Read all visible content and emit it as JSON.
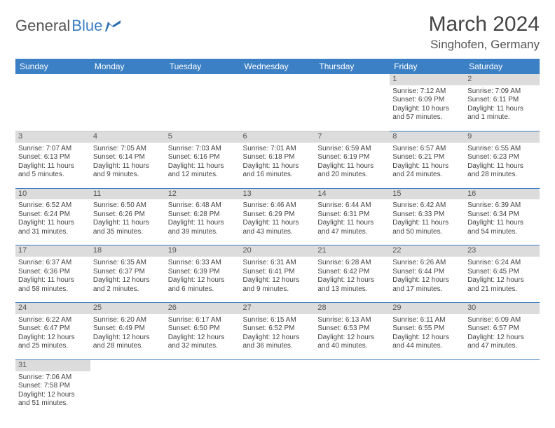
{
  "brand": {
    "part1": "General",
    "part2": "Blue"
  },
  "title": "March 2024",
  "subtitle": "Singhofen, Germany",
  "colors": {
    "header_bg": "#3b7fc4",
    "header_text": "#ffffff",
    "daynum_bg": "#dcdcdc",
    "row_border": "#3b7fc4",
    "body_text": "#444444",
    "page_bg": "#ffffff"
  },
  "fonts": {
    "title_size": 30,
    "subtitle_size": 17,
    "header_size": 12,
    "cell_size": 10
  },
  "day_headers": [
    "Sunday",
    "Monday",
    "Tuesday",
    "Wednesday",
    "Thursday",
    "Friday",
    "Saturday"
  ],
  "weeks": [
    [
      {
        "empty": true
      },
      {
        "empty": true
      },
      {
        "empty": true
      },
      {
        "empty": true
      },
      {
        "empty": true
      },
      {
        "day": "1",
        "l1": "Sunrise: 7:12 AM",
        "l2": "Sunset: 6:09 PM",
        "l3": "Daylight: 10 hours",
        "l4": "and 57 minutes."
      },
      {
        "day": "2",
        "l1": "Sunrise: 7:09 AM",
        "l2": "Sunset: 6:11 PM",
        "l3": "Daylight: 11 hours",
        "l4": "and 1 minute."
      }
    ],
    [
      {
        "day": "3",
        "l1": "Sunrise: 7:07 AM",
        "l2": "Sunset: 6:13 PM",
        "l3": "Daylight: 11 hours",
        "l4": "and 5 minutes."
      },
      {
        "day": "4",
        "l1": "Sunrise: 7:05 AM",
        "l2": "Sunset: 6:14 PM",
        "l3": "Daylight: 11 hours",
        "l4": "and 9 minutes."
      },
      {
        "day": "5",
        "l1": "Sunrise: 7:03 AM",
        "l2": "Sunset: 6:16 PM",
        "l3": "Daylight: 11 hours",
        "l4": "and 12 minutes."
      },
      {
        "day": "6",
        "l1": "Sunrise: 7:01 AM",
        "l2": "Sunset: 6:18 PM",
        "l3": "Daylight: 11 hours",
        "l4": "and 16 minutes."
      },
      {
        "day": "7",
        "l1": "Sunrise: 6:59 AM",
        "l2": "Sunset: 6:19 PM",
        "l3": "Daylight: 11 hours",
        "l4": "and 20 minutes."
      },
      {
        "day": "8",
        "l1": "Sunrise: 6:57 AM",
        "l2": "Sunset: 6:21 PM",
        "l3": "Daylight: 11 hours",
        "l4": "and 24 minutes."
      },
      {
        "day": "9",
        "l1": "Sunrise: 6:55 AM",
        "l2": "Sunset: 6:23 PM",
        "l3": "Daylight: 11 hours",
        "l4": "and 28 minutes."
      }
    ],
    [
      {
        "day": "10",
        "l1": "Sunrise: 6:52 AM",
        "l2": "Sunset: 6:24 PM",
        "l3": "Daylight: 11 hours",
        "l4": "and 31 minutes."
      },
      {
        "day": "11",
        "l1": "Sunrise: 6:50 AM",
        "l2": "Sunset: 6:26 PM",
        "l3": "Daylight: 11 hours",
        "l4": "and 35 minutes."
      },
      {
        "day": "12",
        "l1": "Sunrise: 6:48 AM",
        "l2": "Sunset: 6:28 PM",
        "l3": "Daylight: 11 hours",
        "l4": "and 39 minutes."
      },
      {
        "day": "13",
        "l1": "Sunrise: 6:46 AM",
        "l2": "Sunset: 6:29 PM",
        "l3": "Daylight: 11 hours",
        "l4": "and 43 minutes."
      },
      {
        "day": "14",
        "l1": "Sunrise: 6:44 AM",
        "l2": "Sunset: 6:31 PM",
        "l3": "Daylight: 11 hours",
        "l4": "and 47 minutes."
      },
      {
        "day": "15",
        "l1": "Sunrise: 6:42 AM",
        "l2": "Sunset: 6:33 PM",
        "l3": "Daylight: 11 hours",
        "l4": "and 50 minutes."
      },
      {
        "day": "16",
        "l1": "Sunrise: 6:39 AM",
        "l2": "Sunset: 6:34 PM",
        "l3": "Daylight: 11 hours",
        "l4": "and 54 minutes."
      }
    ],
    [
      {
        "day": "17",
        "l1": "Sunrise: 6:37 AM",
        "l2": "Sunset: 6:36 PM",
        "l3": "Daylight: 11 hours",
        "l4": "and 58 minutes."
      },
      {
        "day": "18",
        "l1": "Sunrise: 6:35 AM",
        "l2": "Sunset: 6:37 PM",
        "l3": "Daylight: 12 hours",
        "l4": "and 2 minutes."
      },
      {
        "day": "19",
        "l1": "Sunrise: 6:33 AM",
        "l2": "Sunset: 6:39 PM",
        "l3": "Daylight: 12 hours",
        "l4": "and 6 minutes."
      },
      {
        "day": "20",
        "l1": "Sunrise: 6:31 AM",
        "l2": "Sunset: 6:41 PM",
        "l3": "Daylight: 12 hours",
        "l4": "and 9 minutes."
      },
      {
        "day": "21",
        "l1": "Sunrise: 6:28 AM",
        "l2": "Sunset: 6:42 PM",
        "l3": "Daylight: 12 hours",
        "l4": "and 13 minutes."
      },
      {
        "day": "22",
        "l1": "Sunrise: 6:26 AM",
        "l2": "Sunset: 6:44 PM",
        "l3": "Daylight: 12 hours",
        "l4": "and 17 minutes."
      },
      {
        "day": "23",
        "l1": "Sunrise: 6:24 AM",
        "l2": "Sunset: 6:45 PM",
        "l3": "Daylight: 12 hours",
        "l4": "and 21 minutes."
      }
    ],
    [
      {
        "day": "24",
        "l1": "Sunrise: 6:22 AM",
        "l2": "Sunset: 6:47 PM",
        "l3": "Daylight: 12 hours",
        "l4": "and 25 minutes."
      },
      {
        "day": "25",
        "l1": "Sunrise: 6:20 AM",
        "l2": "Sunset: 6:49 PM",
        "l3": "Daylight: 12 hours",
        "l4": "and 28 minutes."
      },
      {
        "day": "26",
        "l1": "Sunrise: 6:17 AM",
        "l2": "Sunset: 6:50 PM",
        "l3": "Daylight: 12 hours",
        "l4": "and 32 minutes."
      },
      {
        "day": "27",
        "l1": "Sunrise: 6:15 AM",
        "l2": "Sunset: 6:52 PM",
        "l3": "Daylight: 12 hours",
        "l4": "and 36 minutes."
      },
      {
        "day": "28",
        "l1": "Sunrise: 6:13 AM",
        "l2": "Sunset: 6:53 PM",
        "l3": "Daylight: 12 hours",
        "l4": "and 40 minutes."
      },
      {
        "day": "29",
        "l1": "Sunrise: 6:11 AM",
        "l2": "Sunset: 6:55 PM",
        "l3": "Daylight: 12 hours",
        "l4": "and 44 minutes."
      },
      {
        "day": "30",
        "l1": "Sunrise: 6:09 AM",
        "l2": "Sunset: 6:57 PM",
        "l3": "Daylight: 12 hours",
        "l4": "and 47 minutes."
      }
    ],
    [
      {
        "day": "31",
        "l1": "Sunrise: 7:06 AM",
        "l2": "Sunset: 7:58 PM",
        "l3": "Daylight: 12 hours",
        "l4": "and 51 minutes."
      },
      {
        "empty": true
      },
      {
        "empty": true
      },
      {
        "empty": true
      },
      {
        "empty": true
      },
      {
        "empty": true
      },
      {
        "empty": true
      }
    ]
  ]
}
